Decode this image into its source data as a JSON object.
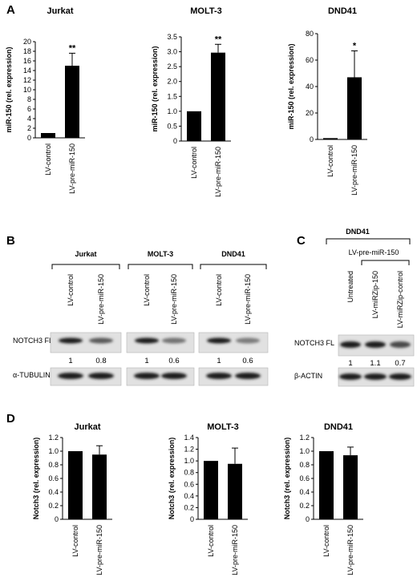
{
  "panels": {
    "A": "A",
    "B": "B",
    "C": "C",
    "D": "D"
  },
  "chart_data": [
    {
      "type": "bar",
      "panel": "A",
      "title": "Jurkat",
      "ylabel": "miR-150 (rel. expression)",
      "categories": [
        "LV-control",
        "LV-pre-miR-150"
      ],
      "values": [
        1,
        15
      ],
      "errors": [
        0,
        2.6
      ],
      "ylim": [
        0,
        20
      ],
      "yticks": [
        "0",
        "2",
        "4",
        "6",
        "8",
        "10",
        "12",
        "14",
        "16",
        "18",
        "20"
      ],
      "significance": [
        "",
        "**"
      ]
    },
    {
      "type": "bar",
      "panel": "A",
      "title": "MOLT-3",
      "ylabel": "miR-150 (rel. expression)",
      "categories": [
        "LV-control",
        "LV-pre-miR-150"
      ],
      "values": [
        1,
        2.97
      ],
      "errors": [
        0,
        0.28
      ],
      "ylim": [
        0,
        3.5
      ],
      "yticks": [
        "0",
        "0.5",
        "1.0",
        "1.5",
        "2.0",
        "2.5",
        "3.0",
        "3.5"
      ],
      "significance": [
        "",
        "**"
      ]
    },
    {
      "type": "bar",
      "panel": "A",
      "title": "DND41",
      "ylabel": "miR-150 (rel. expression)",
      "categories": [
        "LV-control",
        "LV-pre-miR-150"
      ],
      "values": [
        1,
        47
      ],
      "errors": [
        0,
        20
      ],
      "ylim": [
        0,
        80
      ],
      "yticks": [
        "0",
        "20",
        "40",
        "60",
        "80"
      ],
      "significance": [
        "",
        "*"
      ]
    },
    {
      "type": "bar",
      "panel": "D",
      "title": "Jurkat",
      "ylabel": "Notch3 (rel. expression)",
      "categories": [
        "LV-control",
        "LV-pre-miR-150"
      ],
      "values": [
        1.0,
        0.95
      ],
      "errors": [
        0,
        0.13
      ],
      "ylim": [
        0,
        1.2
      ],
      "yticks": [
        "0",
        "0.2",
        "0.4",
        "0.6",
        "0.8",
        "1.0",
        "1.2"
      ],
      "significance": [
        "",
        ""
      ]
    },
    {
      "type": "bar",
      "panel": "D",
      "title": "MOLT-3",
      "ylabel": "Notch3 (rel. expression)",
      "categories": [
        "LV-control",
        "LV-pre-miR-150"
      ],
      "values": [
        1.0,
        0.95
      ],
      "errors": [
        0,
        0.27
      ],
      "ylim": [
        0,
        1.4
      ],
      "yticks": [
        "0",
        "0.2",
        "0.4",
        "0.6",
        "0.8",
        "1.0",
        "1.2",
        "1.4"
      ],
      "significance": [
        "",
        ""
      ]
    },
    {
      "type": "bar",
      "panel": "D",
      "title": "DND41",
      "ylabel": "Notch3 (rel. expression)",
      "categories": [
        "LV-control",
        "LV-pre-miR-150"
      ],
      "values": [
        1.0,
        0.94
      ],
      "errors": [
        0,
        0.12
      ],
      "ylim": [
        0,
        1.2
      ],
      "yticks": [
        "0",
        "0.2",
        "0.4",
        "0.6",
        "0.8",
        "1.0",
        "1.2"
      ],
      "significance": [
        "",
        ""
      ]
    }
  ],
  "blot_B": {
    "groups": [
      {
        "name": "Jurkat",
        "lanes": [
          "LV-control",
          "LV-pre-miR-150"
        ],
        "quant": [
          "1",
          "0.8"
        ],
        "intensity": [
          1.0,
          0.65
        ]
      },
      {
        "name": "MOLT-3",
        "lanes": [
          "LV-control",
          "LV-pre-miR-150"
        ],
        "quant": [
          "1",
          "0.6"
        ],
        "intensity": [
          1.0,
          0.5
        ]
      },
      {
        "name": "DND41",
        "lanes": [
          "LV-control",
          "LV-pre-miR-150"
        ],
        "quant": [
          "1",
          "0.6"
        ],
        "intensity": [
          1.0,
          0.45
        ]
      }
    ],
    "target_label": "NOTCH3 FL",
    "loading_label": "α-TUBULIN"
  },
  "blot_C": {
    "group": "DND41",
    "subgroup": "LV-pre-miR-150",
    "lanes": [
      "Untreated",
      "LV-miRZip-150",
      "LV-miRZip-control"
    ],
    "quant": [
      "1",
      "1.1",
      "0.7"
    ],
    "intensity": [
      1.0,
      1.0,
      0.75
    ],
    "target_label": "NOTCH3 FL",
    "loading_label": "β-ACTIN"
  }
}
